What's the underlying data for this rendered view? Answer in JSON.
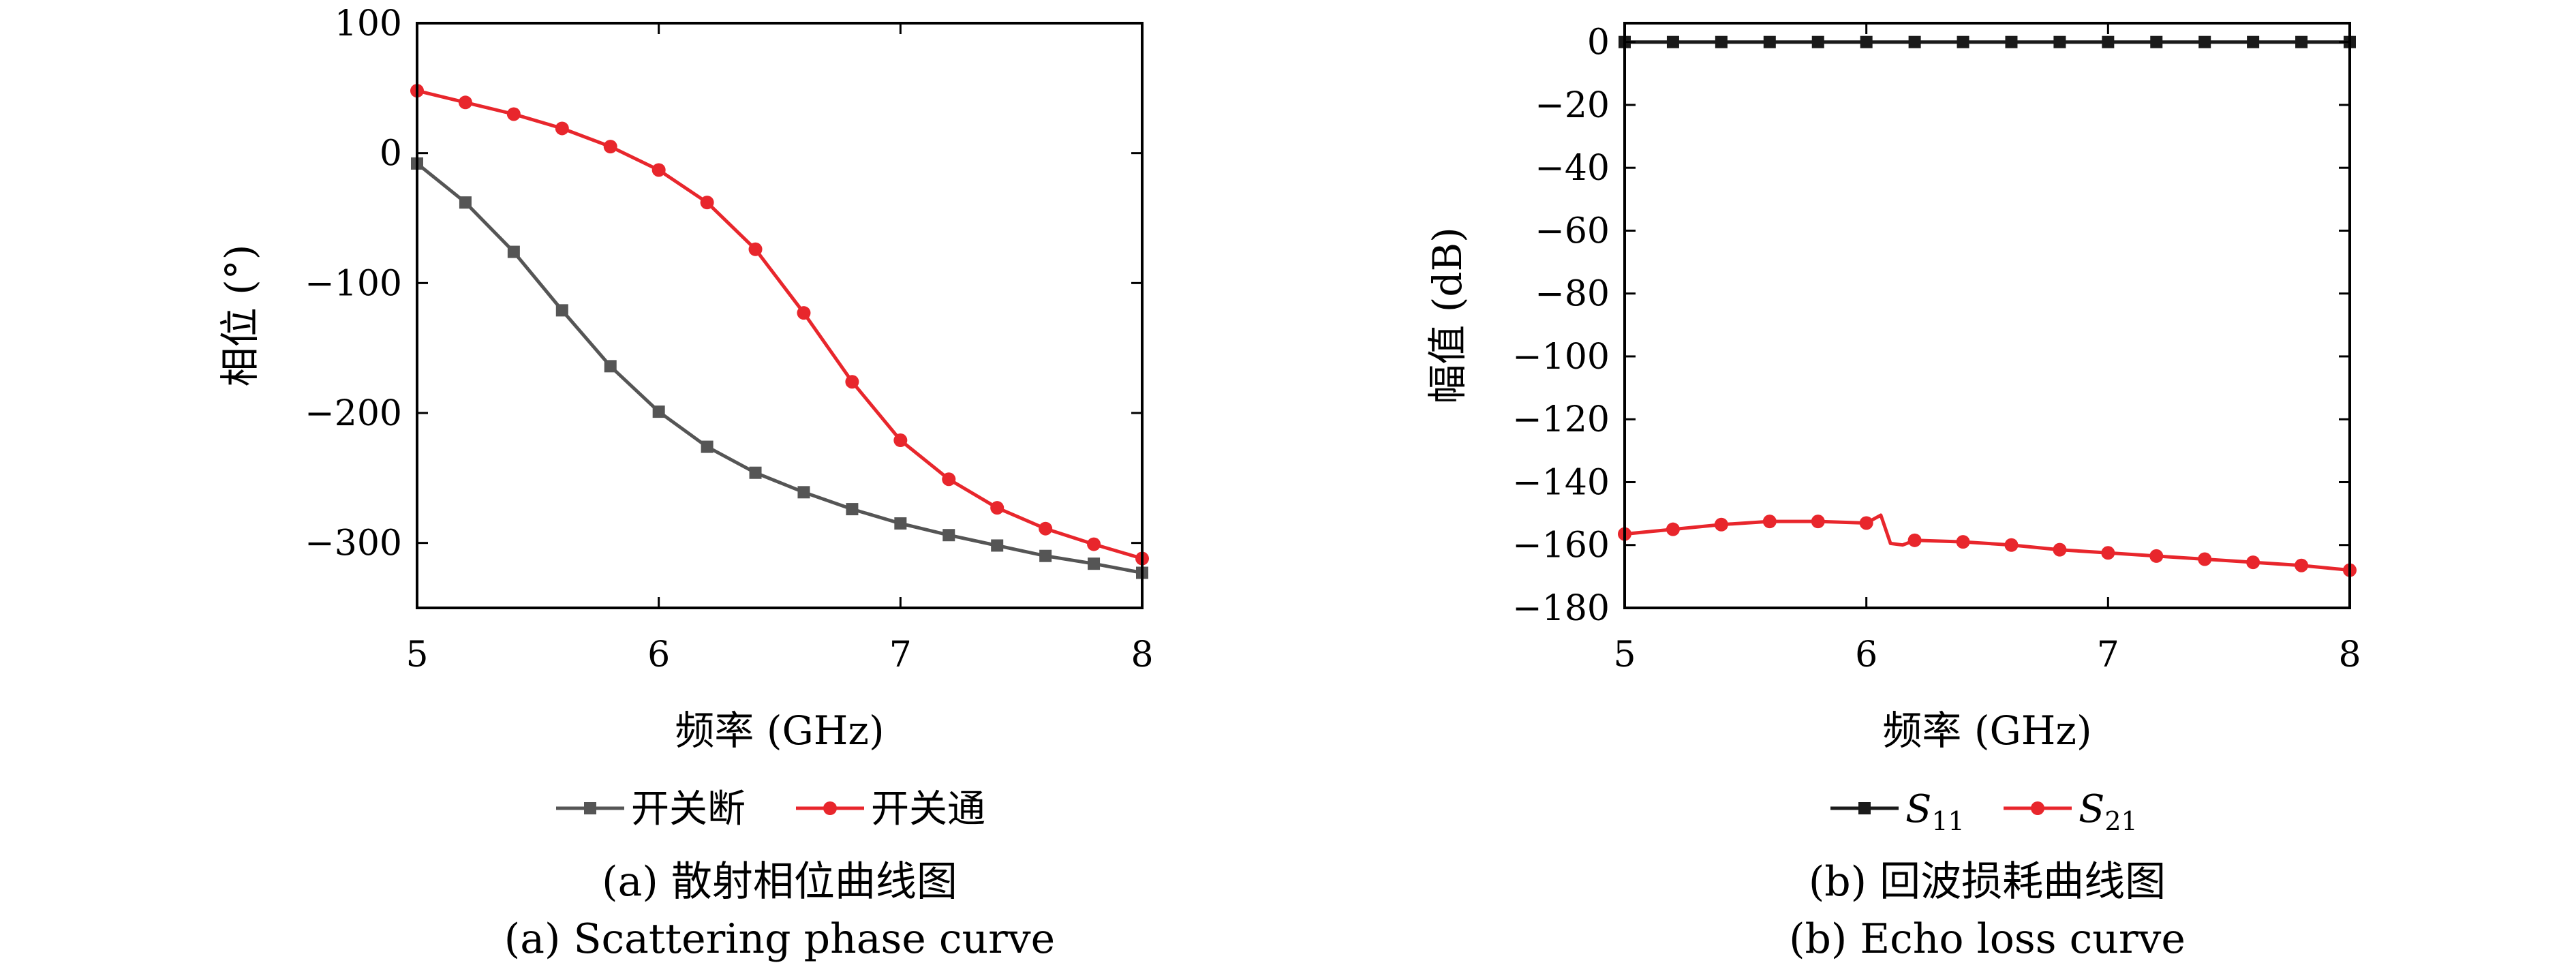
{
  "chart_data": [
    {
      "type": "line",
      "panel": "a",
      "xlabel": "频率 (GHz)",
      "ylabel": "相位 (°)",
      "xlim": [
        5,
        8
      ],
      "ylim": [
        -350,
        100
      ],
      "xticks": [
        "5",
        "6",
        "7",
        "8"
      ],
      "yticks": [
        "100",
        "0",
        "−100",
        "−200",
        "−300"
      ],
      "series": [
        {
          "name": "开关断",
          "color": "#555555",
          "marker": "square",
          "x": [
            5.0,
            5.2,
            5.4,
            5.6,
            5.8,
            6.0,
            6.2,
            6.4,
            6.6,
            6.8,
            7.0,
            7.2,
            7.4,
            7.6,
            7.8,
            8.0
          ],
          "values": [
            -8,
            -38,
            -76,
            -121,
            -164,
            -199,
            -226,
            -246,
            -261,
            -274,
            -285,
            -294,
            -302,
            -310,
            -316,
            -323
          ]
        },
        {
          "name": "开关通",
          "color": "#e8262c",
          "marker": "circle",
          "x": [
            5.0,
            5.2,
            5.4,
            5.6,
            5.8,
            6.0,
            6.2,
            6.4,
            6.6,
            6.8,
            7.0,
            7.2,
            7.4,
            7.6,
            7.8,
            8.0
          ],
          "values": [
            48,
            39,
            30,
            19,
            5,
            -13,
            -38,
            -74,
            -123,
            -176,
            -221,
            -251,
            -273,
            -289,
            -301,
            -312
          ]
        }
      ],
      "legend": "bottom",
      "caption_cn": "(a) 散射相位曲线图",
      "caption_en": "(a) Scattering phase curve"
    },
    {
      "type": "line",
      "panel": "b",
      "xlabel": "频率 (GHz)",
      "ylabel": "幅值 (dB)",
      "xlim": [
        5,
        8
      ],
      "ylim": [
        -180,
        6
      ],
      "xticks": [
        "5",
        "6",
        "7",
        "8"
      ],
      "yticks": [
        "0",
        "−20",
        "−40",
        "−60",
        "−80",
        "−100",
        "−120",
        "−140",
        "−160",
        "−180"
      ],
      "series": [
        {
          "name": "S11",
          "color": "#1a1a1a",
          "marker": "square",
          "x": [
            5.0,
            5.2,
            5.4,
            5.6,
            5.8,
            6.0,
            6.2,
            6.4,
            6.6,
            6.8,
            7.0,
            7.2,
            7.4,
            7.6,
            7.8,
            8.0
          ],
          "values": [
            0,
            0,
            0,
            0,
            0,
            0,
            0,
            0,
            0,
            0,
            0,
            0,
            0,
            0,
            0,
            0
          ]
        },
        {
          "name": "S21",
          "color": "#e8262c",
          "marker": "circle",
          "x": [
            5.0,
            5.2,
            5.4,
            5.6,
            5.8,
            6.0,
            6.2,
            6.4,
            6.6,
            6.8,
            7.0,
            7.2,
            7.4,
            7.6,
            7.8,
            8.0
          ],
          "values": [
            -156.5,
            -155,
            -153.5,
            -152.5,
            -152.5,
            -153,
            -158.5,
            -159,
            -160,
            -161.5,
            -162.5,
            -163.5,
            -164.5,
            -165.5,
            -166.5,
            -168
          ],
          "line_x": [
            5.0,
            5.2,
            5.4,
            5.6,
            5.8,
            6.0,
            6.06,
            6.1,
            6.15,
            6.2,
            6.4,
            6.6,
            6.8,
            7.0,
            7.2,
            7.4,
            7.6,
            7.8,
            8.0
          ],
          "line_values": [
            -156.5,
            -155,
            -153.5,
            -152.5,
            -152.5,
            -153,
            -150.5,
            -159.5,
            -160,
            -158.5,
            -159,
            -160,
            -161.5,
            -162.5,
            -163.5,
            -164.5,
            -165.5,
            -166.5,
            -168
          ]
        }
      ],
      "legend": "bottom",
      "caption_cn": "(b) 回波损耗曲线图",
      "caption_en": "(b) Echo loss curve"
    }
  ]
}
